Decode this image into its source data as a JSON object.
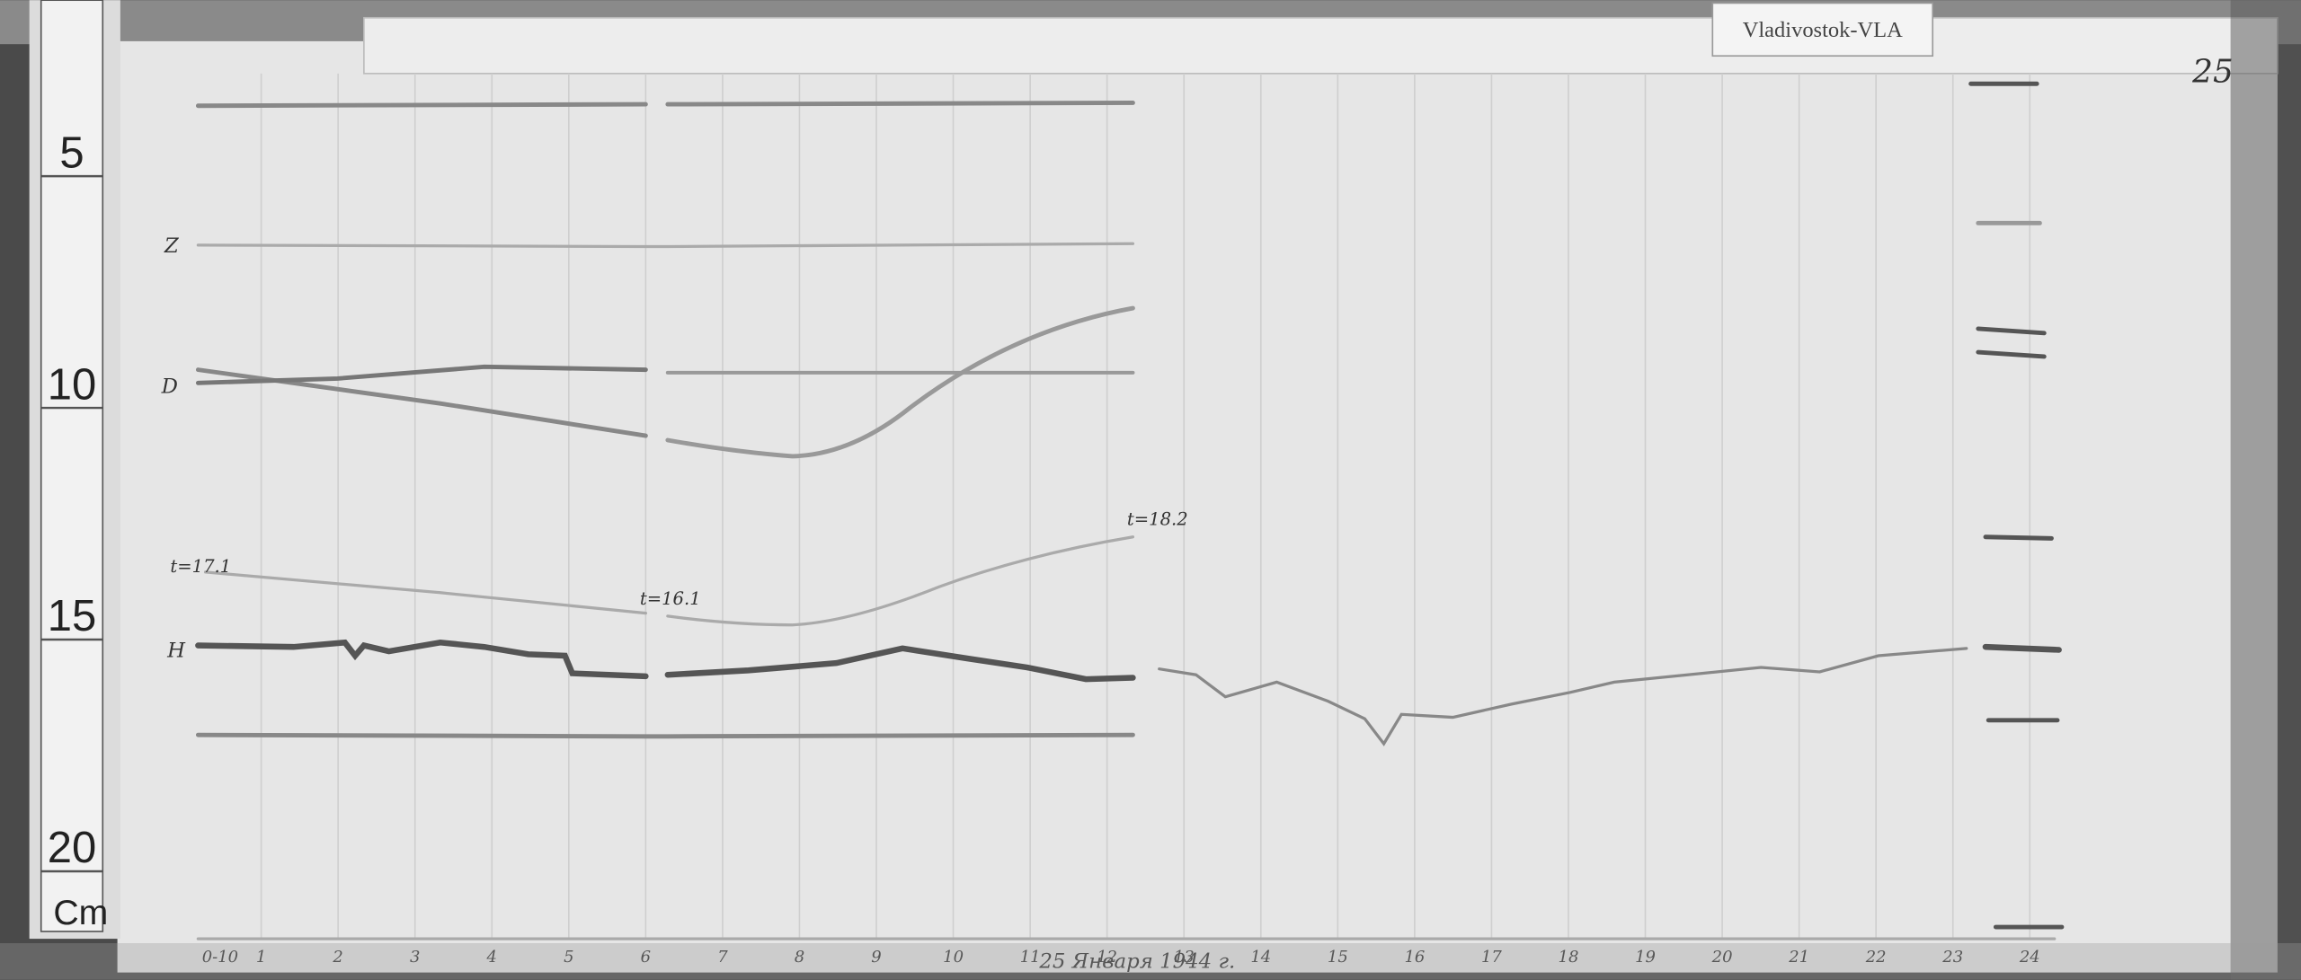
{
  "header": {
    "station": "Vladivostok-VLA",
    "sheet_number": "25"
  },
  "ruler": {
    "marks": [
      "5",
      "10",
      "15",
      "20"
    ],
    "unit": "Cm"
  },
  "traces": {
    "labels": [
      "Z",
      "D",
      "H"
    ]
  },
  "annotations": [
    "t=17.1",
    "t=16.1",
    "t=18.2"
  ],
  "hour_axis": {
    "labels": [
      "0-10",
      "1",
      "2",
      "3",
      "4",
      "5",
      "6",
      "7",
      "8",
      "9",
      "10",
      "11",
      "12",
      "13",
      "14",
      "15",
      "16",
      "17",
      "18",
      "19",
      "20",
      "21",
      "22",
      "23",
      "24"
    ]
  },
  "date": "25 Января 1944 г."
}
